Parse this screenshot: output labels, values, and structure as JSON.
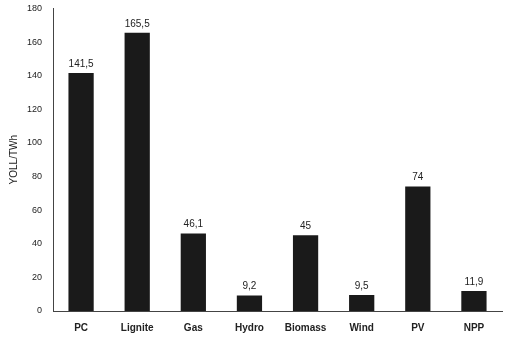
{
  "chart_data": {
    "type": "bar",
    "y_label": "YOLL/TWh",
    "categories": [
      "PC",
      "Lignite",
      "Gas",
      "Hydro",
      "Biomass",
      "Wind",
      "PV",
      "NPP"
    ],
    "values": [
      141.5,
      165.5,
      46.1,
      9.2,
      45,
      9.5,
      74,
      11.9
    ],
    "value_labels": [
      "141,5",
      "165,5",
      "46,1",
      "9,2",
      "45",
      "9,5",
      "74",
      "11,9"
    ],
    "data_labels": true,
    "color": "#1a1a1a",
    "ylim": [
      0,
      180
    ],
    "yticks": [
      0,
      20,
      40,
      60,
      80,
      100,
      120,
      140,
      160,
      180
    ],
    "grid": false
  }
}
